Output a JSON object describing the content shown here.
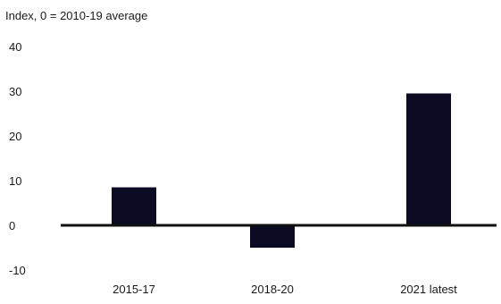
{
  "chart_data": {
    "type": "bar",
    "ylabel": "Index, 0 = 2010-19 average",
    "categories": [
      "2015-17",
      "2018-20",
      "2021 latest"
    ],
    "values": [
      8.5,
      -5,
      29.5
    ],
    "ylim": [
      -10,
      40
    ],
    "yticks": [
      "40",
      "30",
      "20",
      "10",
      "0",
      "-10"
    ],
    "ytick_values": [
      40,
      30,
      20,
      10,
      0,
      -10
    ],
    "grid": false,
    "bar_color": "#0b0b24",
    "axis_color": "#111111"
  }
}
